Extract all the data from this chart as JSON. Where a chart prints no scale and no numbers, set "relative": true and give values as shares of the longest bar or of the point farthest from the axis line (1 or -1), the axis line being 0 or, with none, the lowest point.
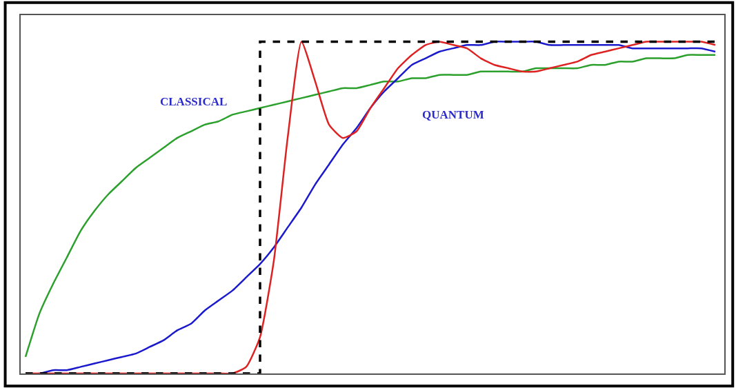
{
  "chart_data": {
    "type": "line",
    "relative": true,
    "tick_labels": false,
    "grid": false,
    "legend": false,
    "categories": [
      null,
      null,
      null,
      null,
      null,
      null,
      null,
      null,
      null,
      null,
      null,
      null,
      null,
      null,
      null,
      null,
      null,
      null,
      null,
      null,
      null,
      null,
      null,
      null,
      null,
      null,
      null,
      null,
      null,
      null,
      null,
      null,
      null,
      null,
      null,
      null,
      null,
      null,
      null,
      null,
      null,
      null,
      null,
      null,
      null,
      null,
      null,
      null,
      null,
      null,
      null
    ],
    "series": [
      {
        "color": "#2ca02c",
        "values": [
          0.05,
          0.18,
          0.27,
          0.35,
          0.43,
          0.49,
          0.54,
          0.58,
          0.62,
          0.65,
          0.68,
          0.71,
          0.73,
          0.75,
          0.76,
          0.78,
          0.79,
          0.8,
          0.81,
          0.82,
          0.83,
          0.84,
          0.85,
          0.86,
          0.86,
          0.87,
          0.88,
          0.88,
          0.89,
          0.89,
          0.9,
          0.9,
          0.9,
          0.91,
          0.91,
          0.91,
          0.91,
          0.92,
          0.92,
          0.92,
          0.92,
          0.93,
          0.93,
          0.94,
          0.94,
          0.95,
          0.95,
          0.95,
          0.96,
          0.96,
          0.96
        ]
      },
      {
        "color": "#1a1acc",
        "values": [
          0,
          0,
          0.01,
          0.01,
          0.02,
          0.03,
          0.04,
          0.05,
          0.06,
          0.08,
          0.1,
          0.13,
          0.15,
          0.19,
          0.22,
          0.25,
          0.29,
          0.33,
          0.38,
          0.44,
          0.5,
          0.57,
          0.63,
          0.69,
          0.74,
          0.8,
          0.85,
          0.89,
          0.93,
          0.95,
          0.97,
          0.98,
          0.99,
          0.99,
          1.0,
          1.0,
          1.0,
          1.0,
          0.99,
          0.99,
          0.99,
          0.99,
          0.99,
          0.99,
          0.98,
          0.98,
          0.98,
          0.98,
          0.98,
          0.98,
          0.97
        ]
      },
      {
        "color": "#dd2222",
        "values": [
          0,
          0,
          0,
          0,
          0,
          0,
          0,
          0,
          0,
          0,
          0,
          0,
          0,
          0,
          0,
          0,
          0.02,
          0.11,
          0.34,
          0.71,
          1.0,
          0.88,
          0.75,
          0.71,
          0.73,
          0.8,
          0.86,
          0.92,
          0.96,
          0.99,
          1.0,
          0.99,
          0.98,
          0.95,
          0.93,
          0.92,
          0.91,
          0.91,
          0.92,
          0.93,
          0.94,
          0.96,
          0.97,
          0.98,
          0.99,
          1.0,
          1.0,
          1.0,
          1.0,
          1.0,
          0.99
        ]
      },
      {
        "type": "step",
        "color": "#000000",
        "line_style": "dashed",
        "values": [
          0,
          0,
          0,
          0,
          0,
          0,
          0,
          0,
          0,
          0,
          0,
          0,
          0,
          0,
          0,
          0,
          0,
          1,
          1,
          1,
          1,
          1,
          1,
          1,
          1,
          1,
          1,
          1,
          1,
          1,
          1,
          1,
          1,
          1,
          1,
          1,
          1,
          1,
          1,
          1,
          1,
          1,
          1,
          1,
          1,
          1,
          1,
          1,
          1,
          1,
          1
        ]
      }
    ],
    "annotations": [
      "CLASSICAL",
      "QUANTUM"
    ]
  }
}
